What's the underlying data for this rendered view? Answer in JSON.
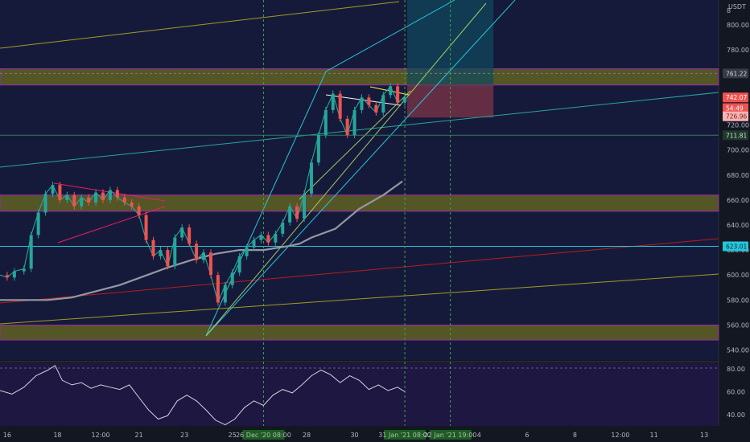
{
  "chart_data": {
    "type": "line",
    "price_pane": {
      "currency": "USDT",
      "y_ticks": [
        540,
        560,
        580,
        600,
        620,
        640,
        660,
        680,
        700,
        720,
        780,
        800
      ],
      "top_tick_label": "8",
      "ylim": [
        532,
        820
      ],
      "last_price": 742.07,
      "price_tags": [
        {
          "value": 761.22,
          "label": "761.22",
          "bg": "#363a45",
          "fg": "#d1d4dc"
        },
        {
          "value": 742.07,
          "label": "742.07",
          "bg": "#ef5350",
          "fg": "#ffffff"
        },
        {
          "value": 733.5,
          "label": "54:49",
          "bg": "#ef5350",
          "fg": "#ffffff"
        },
        {
          "value": 726.96,
          "label": "726.96",
          "bg": "#f8b3b2",
          "fg": "#7a1f1f"
        },
        {
          "value": 711.81,
          "label": "711.81",
          "bg": "#1e3a2c",
          "fg": "#d1d4dc"
        },
        {
          "value": 623.0,
          "label": "623.01",
          "bg": "#26c6da",
          "fg": "#0b2a30"
        }
      ],
      "zones": [
        {
          "from": 752,
          "to": 765
        },
        {
          "from": 651,
          "to": 664
        },
        {
          "from": 548,
          "to": 560
        }
      ],
      "moving_average": [
        {
          "x": 0,
          "y": 580
        },
        {
          "x": 2,
          "y": 580
        },
        {
          "x": 3,
          "y": 582
        },
        {
          "x": 4,
          "y": 587
        },
        {
          "x": 5,
          "y": 592
        },
        {
          "x": 6,
          "y": 599
        },
        {
          "x": 7,
          "y": 606
        },
        {
          "x": 8,
          "y": 612
        },
        {
          "x": 9,
          "y": 617
        },
        {
          "x": 10,
          "y": 620
        },
        {
          "x": 11,
          "y": 620
        },
        {
          "x": 12,
          "y": 623
        },
        {
          "x": 12.5,
          "y": 625
        },
        {
          "x": 13,
          "y": 630
        },
        {
          "x": 14,
          "y": 637
        },
        {
          "x": 14.5,
          "y": 645
        },
        {
          "x": 15,
          "y": 653
        },
        {
          "x": 16,
          "y": 664
        },
        {
          "x": 16.8,
          "y": 675
        }
      ],
      "candles_close": [
        {
          "x": 0,
          "y": 600
        },
        {
          "x": 0.3,
          "y": 598
        },
        {
          "x": 0.6,
          "y": 603
        },
        {
          "x": 1,
          "y": 605
        },
        {
          "x": 1.3,
          "y": 632
        },
        {
          "x": 1.6,
          "y": 650
        },
        {
          "x": 1.9,
          "y": 665
        },
        {
          "x": 2.2,
          "y": 672
        },
        {
          "x": 2.5,
          "y": 660
        },
        {
          "x": 2.8,
          "y": 664
        },
        {
          "x": 3.1,
          "y": 655
        },
        {
          "x": 3.4,
          "y": 662
        },
        {
          "x": 3.7,
          "y": 658
        },
        {
          "x": 4,
          "y": 666
        },
        {
          "x": 4.3,
          "y": 660
        },
        {
          "x": 4.6,
          "y": 668
        },
        {
          "x": 4.9,
          "y": 662
        },
        {
          "x": 5.2,
          "y": 658
        },
        {
          "x": 5.5,
          "y": 655
        },
        {
          "x": 5.8,
          "y": 648
        },
        {
          "x": 6.1,
          "y": 628
        },
        {
          "x": 6.4,
          "y": 615
        },
        {
          "x": 6.7,
          "y": 620
        },
        {
          "x": 7,
          "y": 607
        },
        {
          "x": 7.3,
          "y": 630
        },
        {
          "x": 7.6,
          "y": 638
        },
        {
          "x": 7.9,
          "y": 625
        },
        {
          "x": 8.2,
          "y": 612
        },
        {
          "x": 8.5,
          "y": 618
        },
        {
          "x": 8.8,
          "y": 600
        },
        {
          "x": 9.1,
          "y": 578
        },
        {
          "x": 9.4,
          "y": 592
        },
        {
          "x": 9.7,
          "y": 602
        },
        {
          "x": 10,
          "y": 615
        },
        {
          "x": 10.3,
          "y": 622
        },
        {
          "x": 10.6,
          "y": 628
        },
        {
          "x": 10.9,
          "y": 632
        },
        {
          "x": 11.2,
          "y": 626
        },
        {
          "x": 11.5,
          "y": 633
        },
        {
          "x": 11.8,
          "y": 642
        },
        {
          "x": 12.1,
          "y": 655
        },
        {
          "x": 12.4,
          "y": 645
        },
        {
          "x": 12.7,
          "y": 665
        },
        {
          "x": 13,
          "y": 690
        },
        {
          "x": 13.3,
          "y": 712
        },
        {
          "x": 13.6,
          "y": 732
        },
        {
          "x": 13.9,
          "y": 745
        },
        {
          "x": 14.2,
          "y": 725
        },
        {
          "x": 14.5,
          "y": 712
        },
        {
          "x": 14.8,
          "y": 732
        },
        {
          "x": 15.1,
          "y": 742
        },
        {
          "x": 15.4,
          "y": 736
        },
        {
          "x": 15.7,
          "y": 730
        },
        {
          "x": 16,
          "y": 744
        },
        {
          "x": 16.3,
          "y": 751
        },
        {
          "x": 16.6,
          "y": 738
        },
        {
          "x": 16.9,
          "y": 742
        }
      ],
      "levels": [
        {
          "value": 761.22,
          "color": "#787b86",
          "dash": true
        },
        {
          "value": 711.81,
          "color": "#2e7d5b",
          "dash": false
        },
        {
          "value": 623.0,
          "color": "#26c6da",
          "dash": false
        }
      ]
    },
    "oscillator_pane": {
      "y_ticks": [
        40,
        60,
        80
      ],
      "ylim": [
        30,
        85
      ],
      "upper_band": 80,
      "values": [
        {
          "x": 0,
          "y": 61
        },
        {
          "x": 0.5,
          "y": 58
        },
        {
          "x": 1,
          "y": 64
        },
        {
          "x": 1.5,
          "y": 74
        },
        {
          "x": 2,
          "y": 79
        },
        {
          "x": 2.3,
          "y": 83
        },
        {
          "x": 2.6,
          "y": 70
        },
        {
          "x": 3,
          "y": 66
        },
        {
          "x": 3.4,
          "y": 68
        },
        {
          "x": 3.8,
          "y": 63
        },
        {
          "x": 4.2,
          "y": 66
        },
        {
          "x": 4.6,
          "y": 64
        },
        {
          "x": 5,
          "y": 62
        },
        {
          "x": 5.4,
          "y": 66
        },
        {
          "x": 5.8,
          "y": 55
        },
        {
          "x": 6.2,
          "y": 44
        },
        {
          "x": 6.6,
          "y": 36
        },
        {
          "x": 7,
          "y": 39
        },
        {
          "x": 7.4,
          "y": 52
        },
        {
          "x": 7.8,
          "y": 57
        },
        {
          "x": 8.2,
          "y": 52
        },
        {
          "x": 8.6,
          "y": 44
        },
        {
          "x": 9,
          "y": 35
        },
        {
          "x": 9.4,
          "y": 31
        },
        {
          "x": 9.8,
          "y": 36
        },
        {
          "x": 10.2,
          "y": 46
        },
        {
          "x": 10.6,
          "y": 52
        },
        {
          "x": 11,
          "y": 48
        },
        {
          "x": 11.4,
          "y": 57
        },
        {
          "x": 11.8,
          "y": 62
        },
        {
          "x": 12.2,
          "y": 59
        },
        {
          "x": 12.6,
          "y": 66
        },
        {
          "x": 13,
          "y": 74
        },
        {
          "x": 13.4,
          "y": 79
        },
        {
          "x": 13.8,
          "y": 75
        },
        {
          "x": 14.2,
          "y": 68
        },
        {
          "x": 14.6,
          "y": 74
        },
        {
          "x": 15,
          "y": 70
        },
        {
          "x": 15.4,
          "y": 62
        },
        {
          "x": 15.8,
          "y": 66
        },
        {
          "x": 16.2,
          "y": 61
        },
        {
          "x": 16.6,
          "y": 64
        },
        {
          "x": 16.9,
          "y": 60
        }
      ]
    },
    "x_axis": {
      "ticks": [
        {
          "label": "16",
          "x": 0.3
        },
        {
          "label": "18",
          "x": 2.4
        },
        {
          "label": "12:00",
          "x": 4.2
        },
        {
          "label": "21",
          "x": 5.8
        },
        {
          "label": "23",
          "x": 7.7
        },
        {
          "label": "25",
          "x": 9.7
        },
        {
          "label": "28",
          "x": 12.8
        },
        {
          "label": "30",
          "x": 14.8
        },
        {
          "label": "4",
          "x": 20.0
        },
        {
          "label": "6",
          "x": 22.0
        },
        {
          "label": "8",
          "x": 24.0
        },
        {
          "label": "12:00",
          "x": 25.9
        },
        {
          "label": "11",
          "x": 27.3
        },
        {
          "label": "13",
          "x": 29.4
        }
      ],
      "highlighted_labels": [
        {
          "label": "26 Dec '20   08:00",
          "x": 11.0
        },
        {
          "label": "31 Jan '21   08:00",
          "x": 16.9
        },
        {
          "label": "22 Jan '21   19:00",
          "x": 18.8
        }
      ],
      "xlim": [
        0,
        30
      ]
    },
    "vertical_markers": [
      11.0,
      16.9,
      18.8
    ],
    "position_box": {
      "x_from": 17.0,
      "x_to": 20.6,
      "entry": 752,
      "target": 820,
      "stop": 726
    }
  }
}
